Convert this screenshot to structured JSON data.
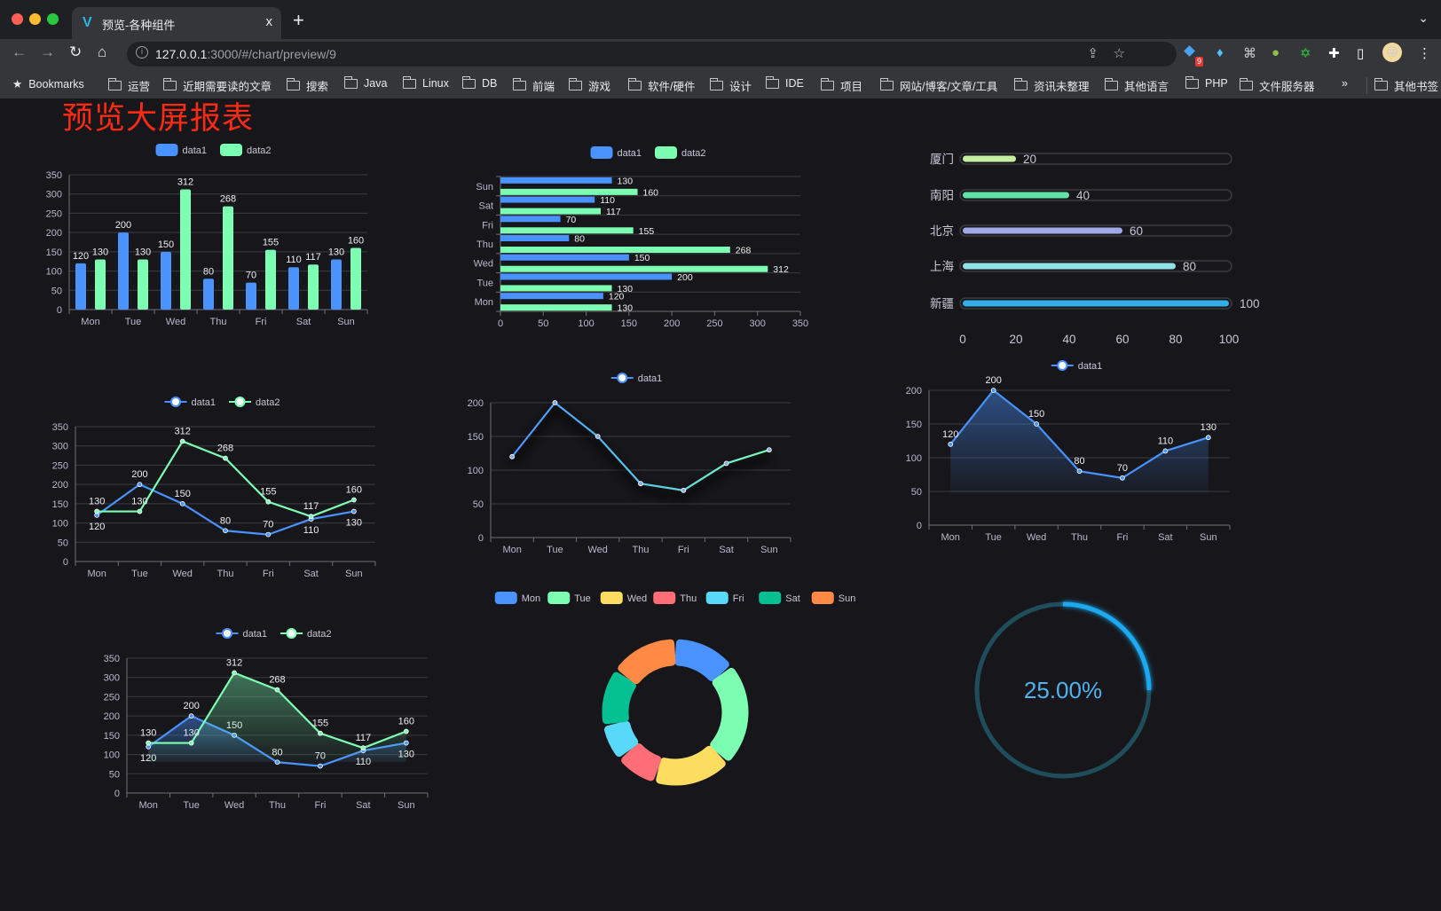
{
  "browser": {
    "tab_title": "预览-各种组件",
    "tab_close": "x",
    "new_tab": "+",
    "url_host": "127.0.0.1",
    "url_rest": ":3000/#/chart/preview/9",
    "extension_badge": "9",
    "bookmarks_label": "Bookmarks",
    "bookmarks": [
      "运营",
      "近期需要读的文章",
      "搜索",
      "Java",
      "Linux",
      "DB",
      "前端",
      "游戏",
      "软件/硬件",
      "设计",
      "IDE",
      "项目",
      "网站/博客/文章/工具",
      "资讯未整理",
      "其他语言",
      "PHP",
      "文件服务器"
    ],
    "overflow": "»",
    "other_bookmarks": "其他书签"
  },
  "page": {
    "title": "预览大屏报表",
    "title_color": "#ff2a14",
    "background": "#17171b"
  },
  "theme": {
    "palette": [
      "#4992ff",
      "#7cffb2",
      "#fddd60",
      "#ff6e76",
      "#58d9f9",
      "#05c091",
      "#ff8a45"
    ]
  },
  "chart_data": [
    {
      "id": "bar",
      "type": "bar",
      "categories": [
        "Mon",
        "Tue",
        "Wed",
        "Thu",
        "Fri",
        "Sat",
        "Sun"
      ],
      "series": [
        {
          "name": "data1",
          "values": [
            120,
            200,
            150,
            80,
            70,
            110,
            130
          ]
        },
        {
          "name": "data2",
          "values": [
            130,
            130,
            312,
            268,
            155,
            117,
            160
          ]
        }
      ],
      "ylim": [
        0,
        350
      ],
      "yticks": [
        0,
        50,
        100,
        150,
        200,
        250,
        300,
        350
      ],
      "legend": "top-center",
      "grid": true,
      "data_labels": true
    },
    {
      "id": "hbar",
      "type": "bar",
      "orientation": "horizontal",
      "categories": [
        "Mon",
        "Tue",
        "Wed",
        "Thu",
        "Fri",
        "Sat",
        "Sun"
      ],
      "series": [
        {
          "name": "data1",
          "values": [
            120,
            200,
            150,
            80,
            70,
            110,
            130
          ]
        },
        {
          "name": "data2",
          "values": [
            130,
            130,
            312,
            268,
            155,
            117,
            160
          ]
        }
      ],
      "xlim": [
        0,
        350
      ],
      "xticks": [
        0,
        50,
        100,
        150,
        200,
        250,
        300,
        350
      ],
      "legend": "top-center",
      "grid": true,
      "data_labels": true
    },
    {
      "id": "progress",
      "type": "bar",
      "orientation": "horizontal",
      "categories": [
        "厦门",
        "南阳",
        "北京",
        "上海",
        "新疆"
      ],
      "values": [
        20,
        40,
        60,
        80,
        100
      ],
      "xlim": [
        0,
        100
      ],
      "xticks": [
        0,
        20,
        40,
        60,
        80,
        100
      ],
      "colors": [
        "#c6f0a0",
        "#5fe3a8",
        "#a0a8e8",
        "#90e2e8",
        "#34aee8"
      ],
      "data_labels": true
    },
    {
      "id": "line2",
      "type": "line",
      "categories": [
        "Mon",
        "Tue",
        "Wed",
        "Thu",
        "Fri",
        "Sat",
        "Sun"
      ],
      "series": [
        {
          "name": "data1",
          "values": [
            120,
            200,
            150,
            80,
            70,
            110,
            130
          ]
        },
        {
          "name": "data2",
          "values": [
            130,
            130,
            312,
            268,
            155,
            117,
            160
          ]
        }
      ],
      "ylim": [
        0,
        350
      ],
      "yticks": [
        0,
        50,
        100,
        150,
        200,
        250,
        300,
        350
      ],
      "legend": "top-center",
      "grid": true,
      "data_labels": true
    },
    {
      "id": "line1",
      "type": "line",
      "categories": [
        "Mon",
        "Tue",
        "Wed",
        "Thu",
        "Fri",
        "Sat",
        "Sun"
      ],
      "series": [
        {
          "name": "data1",
          "values": [
            120,
            200,
            150,
            80,
            70,
            110,
            130
          ]
        }
      ],
      "ylim": [
        0,
        200
      ],
      "yticks": [
        0,
        50,
        100,
        150,
        200
      ],
      "legend": "top-center",
      "grid": true,
      "data_labels": false,
      "shadow": true
    },
    {
      "id": "area1",
      "type": "area",
      "categories": [
        "Mon",
        "Tue",
        "Wed",
        "Thu",
        "Fri",
        "Sat",
        "Sun"
      ],
      "series": [
        {
          "name": "data1",
          "values": [
            120,
            200,
            150,
            80,
            70,
            110,
            130
          ]
        }
      ],
      "ylim": [
        0,
        200
      ],
      "yticks": [
        0,
        50,
        100,
        150,
        200
      ],
      "legend": "top-center",
      "grid": true,
      "data_labels": true
    },
    {
      "id": "area2",
      "type": "area",
      "categories": [
        "Mon",
        "Tue",
        "Wed",
        "Thu",
        "Fri",
        "Sat",
        "Sun"
      ],
      "series": [
        {
          "name": "data1",
          "values": [
            120,
            200,
            150,
            80,
            70,
            110,
            130
          ]
        },
        {
          "name": "data2",
          "values": [
            130,
            130,
            312,
            268,
            155,
            117,
            160
          ]
        }
      ],
      "ylim": [
        0,
        350
      ],
      "yticks": [
        0,
        50,
        100,
        150,
        200,
        250,
        300,
        350
      ],
      "legend": "top-center",
      "grid": true,
      "data_labels": true
    },
    {
      "id": "pie",
      "type": "pie",
      "donut": true,
      "categories": [
        "Mon",
        "Tue",
        "Wed",
        "Thu",
        "Fri",
        "Sat",
        "Sun"
      ],
      "values": [
        120,
        200,
        150,
        80,
        70,
        110,
        130
      ],
      "legend": "top-center"
    },
    {
      "id": "gauge",
      "type": "progress-ring",
      "value": 25,
      "label": "25.00%",
      "color": "#1aa9f0",
      "track_color": "#1f4d5c"
    }
  ]
}
